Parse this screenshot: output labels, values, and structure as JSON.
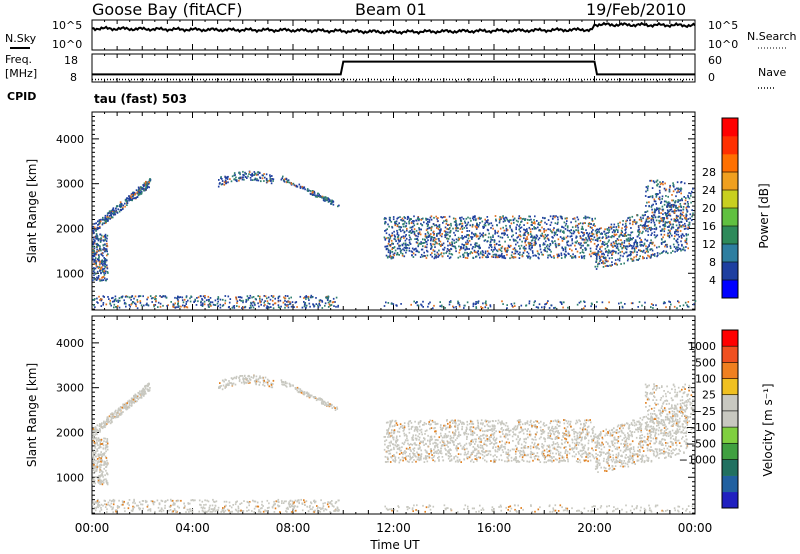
{
  "header": {
    "station": "Goose Bay (fitACF)",
    "beam": "Beam 01",
    "date": "19/Feb/2010"
  },
  "side_labels": {
    "nsky": "N.Sky",
    "nsearch": "N.Search",
    "freq_line1": "Freq.",
    "freq_line2": "[MHz]",
    "nave": "Nave",
    "cpid": "CPID",
    "cpid_value": "tau (fast) 503"
  },
  "colors": {
    "line": "#000000",
    "power_dots": "#1f3f9f",
    "power_core": "#2f7f6f",
    "power_hot": "#e07020",
    "velocity_main": "#c8c8c0",
    "velocity_hot": "#e08020"
  },
  "chart_data": [
    {
      "type": "line",
      "panel": "noise",
      "left_ticks": [
        "10^5",
        "10^0"
      ],
      "right_ticks": [
        "10^5",
        "10^0"
      ],
      "series": [
        {
          "name": "N.Sky",
          "x": [
            0,
            4,
            8,
            12,
            16,
            19.9,
            20,
            24
          ],
          "y": [
            0.72,
            0.68,
            0.66,
            0.6,
            0.64,
            0.68,
            0.85,
            0.82
          ]
        }
      ]
    },
    {
      "type": "line",
      "panel": "frequency",
      "left_ticks": [
        "18",
        "8"
      ],
      "right_ticks": [
        "60",
        "0"
      ],
      "series": [
        {
          "name": "Freq.",
          "x": [
            0,
            9.9,
            10,
            20,
            20.1,
            24
          ],
          "y": [
            10,
            10,
            15,
            15,
            10,
            10
          ]
        },
        {
          "name": "Nave",
          "x": [
            0,
            24
          ],
          "y": [
            8,
            8
          ]
        }
      ]
    },
    {
      "type": "heatmap",
      "panel": "power",
      "ylabel": "Slant Range [km]",
      "yticks": [
        1000,
        2000,
        3000,
        4000
      ],
      "ylim": [
        180,
        4600
      ],
      "xlim": [
        0,
        24
      ],
      "colorbar": {
        "label": "Power [dB]",
        "ticks": [
          "4",
          "8",
          "12",
          "16",
          "20",
          "24",
          "28"
        ],
        "colors": [
          "#0000ff",
          "#1e3fa0",
          "#2e7ea0",
          "#2e8a5a",
          "#60c040",
          "#c8d020",
          "#f0a020",
          "#ff7000",
          "#ff3000",
          "#ff0000"
        ]
      }
    },
    {
      "type": "heatmap",
      "panel": "velocity",
      "ylabel": "Slant Range [km]",
      "yticks": [
        1000,
        2000,
        3000,
        4000
      ],
      "ylim": [
        180,
        4600
      ],
      "xlim": [
        0,
        24
      ],
      "xlabel": "Time UT",
      "xticks": [
        "00:00",
        "04:00",
        "08:00",
        "12:00",
        "16:00",
        "20:00",
        "00:00"
      ],
      "colorbar": {
        "label": "Velocity [m s⁻¹]",
        "ticks": [
          "1000",
          "500",
          "100",
          "25",
          "−25",
          "−100",
          "−500",
          "−1000"
        ],
        "colors": [
          "#2020c0",
          "#2060a0",
          "#207060",
          "#40a040",
          "#80d040",
          "#c8c8c0",
          "#c8c8c0",
          "#f0c020",
          "#f08020",
          "#f05020",
          "#ff0000"
        ]
      }
    }
  ]
}
